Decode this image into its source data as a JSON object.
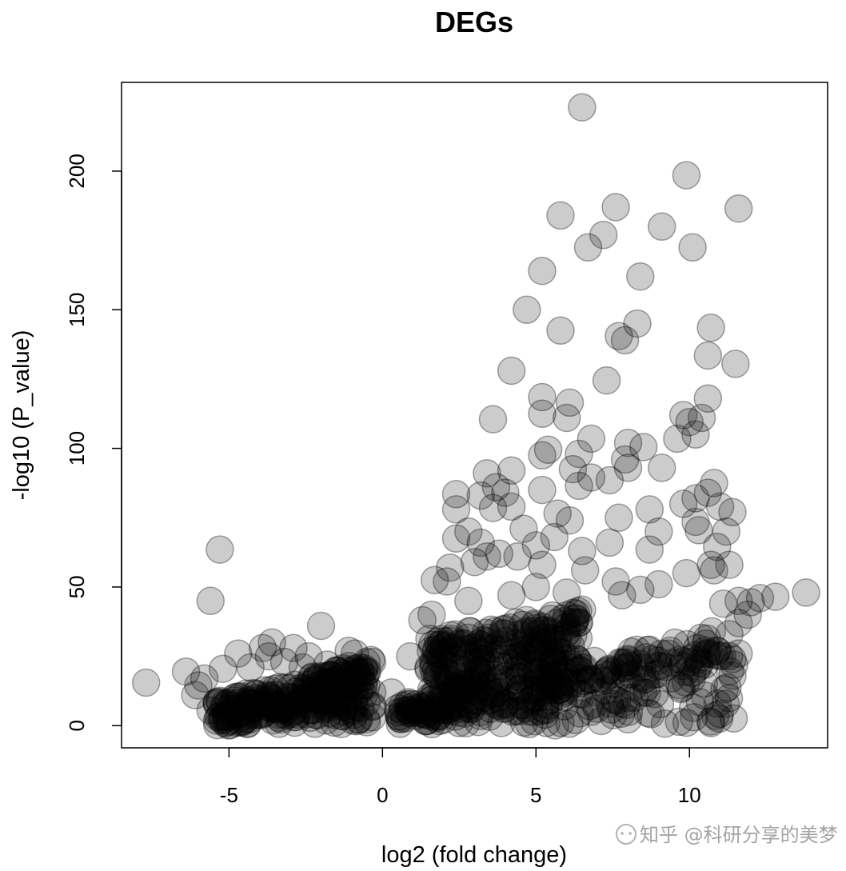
{
  "chart_data": {
    "type": "scatter",
    "title": "DEGs",
    "xlabel": "log2 (fold change)",
    "ylabel": "-log10 (P_value)",
    "xlim": [
      -8.5,
      14.5
    ],
    "ylim": [
      -8,
      232
    ],
    "xticks": [
      -5,
      0,
      5,
      10
    ],
    "yticks": [
      0,
      50,
      100,
      150,
      200
    ],
    "grid": false,
    "legend": "none",
    "point_color": "#000000",
    "point_alpha": 0.2,
    "series": [
      {
        "points": [
          [
            6.5,
            223
          ],
          [
            9.9,
            198.5
          ],
          [
            11.6,
            186.5
          ],
          [
            5.8,
            184
          ],
          [
            7.6,
            187
          ],
          [
            7.2,
            177
          ],
          [
            6.7,
            172.5
          ],
          [
            9.1,
            180
          ],
          [
            10.1,
            172.5
          ],
          [
            5.2,
            164
          ],
          [
            8.4,
            162
          ],
          [
            4.7,
            150
          ],
          [
            5.8,
            142.5
          ],
          [
            8.3,
            145
          ],
          [
            7.7,
            140.5
          ],
          [
            7.9,
            139
          ],
          [
            10.7,
            143.5
          ],
          [
            10.6,
            133.5
          ],
          [
            11.5,
            130.5
          ],
          [
            4.2,
            128
          ],
          [
            7.3,
            124.5
          ],
          [
            5.2,
            118.5
          ],
          [
            6.1,
            116.5
          ],
          [
            10.6,
            118
          ],
          [
            3.6,
            110.5
          ],
          [
            5.2,
            112.5
          ],
          [
            6.0,
            111
          ],
          [
            9.8,
            112
          ],
          [
            10.0,
            109.5
          ],
          [
            10.4,
            111
          ],
          [
            10.2,
            105
          ],
          [
            9.6,
            103.5
          ],
          [
            6.8,
            103.5
          ],
          [
            5.4,
            99.5
          ],
          [
            5.2,
            97.5
          ],
          [
            6.4,
            98
          ],
          [
            8.0,
            102
          ],
          [
            8.5,
            100.5
          ],
          [
            7.9,
            96
          ],
          [
            8.0,
            93
          ],
          [
            9.1,
            93
          ],
          [
            6.2,
            92.5
          ],
          [
            6.8,
            89.5
          ],
          [
            7.4,
            88.5
          ],
          [
            4.2,
            92
          ],
          [
            3.4,
            91
          ],
          [
            3.7,
            86
          ],
          [
            4.0,
            84
          ],
          [
            3.2,
            83
          ],
          [
            2.4,
            83.5
          ],
          [
            5.2,
            85
          ],
          [
            6.4,
            86.5
          ],
          [
            10.8,
            87.5
          ],
          [
            10.6,
            84
          ],
          [
            10.2,
            82
          ],
          [
            9.8,
            80
          ],
          [
            11.0,
            79
          ],
          [
            2.4,
            78
          ],
          [
            3.6,
            78.5
          ],
          [
            4.2,
            79
          ],
          [
            5.7,
            76.5
          ],
          [
            6.1,
            74
          ],
          [
            7.7,
            75
          ],
          [
            8.7,
            78
          ],
          [
            11.4,
            77
          ],
          [
            10.2,
            73.5
          ],
          [
            10.3,
            70.5
          ],
          [
            9.0,
            70
          ],
          [
            11.2,
            70
          ],
          [
            2.4,
            67.5
          ],
          [
            2.8,
            70
          ],
          [
            3.2,
            66
          ],
          [
            3.4,
            61
          ],
          [
            4.6,
            71
          ],
          [
            5.0,
            65
          ],
          [
            5.6,
            68
          ],
          [
            6.5,
            63
          ],
          [
            7.4,
            66
          ],
          [
            8.7,
            63.5
          ],
          [
            10.9,
            64.5
          ],
          [
            10.7,
            58
          ],
          [
            10.8,
            56
          ],
          [
            11.3,
            58
          ],
          [
            9.9,
            55
          ],
          [
            9.0,
            51
          ],
          [
            8.4,
            49
          ],
          [
            7.6,
            52
          ],
          [
            6.6,
            56
          ],
          [
            5.2,
            58
          ],
          [
            4.4,
            61
          ],
          [
            3.8,
            62
          ],
          [
            3.0,
            59
          ],
          [
            2.2,
            57
          ],
          [
            2.1,
            52
          ],
          [
            1.7,
            52.5
          ],
          [
            2.8,
            45
          ],
          [
            4.2,
            47
          ],
          [
            5.0,
            50
          ],
          [
            6.0,
            48
          ],
          [
            7.8,
            47
          ],
          [
            11.1,
            44
          ],
          [
            11.6,
            45
          ],
          [
            12.0,
            44.5
          ],
          [
            12.3,
            46
          ],
          [
            12.8,
            46.5
          ],
          [
            13.8,
            48
          ],
          [
            11.9,
            40
          ],
          [
            11.6,
            37
          ],
          [
            11.3,
            33
          ],
          [
            10.9,
            27
          ],
          [
            11.4,
            24
          ],
          [
            11.6,
            26
          ],
          [
            10.5,
            22
          ],
          [
            10.1,
            19
          ],
          [
            11.4,
            18
          ],
          [
            9.4,
            17
          ],
          [
            8.6,
            14
          ],
          [
            8.0,
            10
          ],
          [
            7.4,
            8
          ],
          [
            6.8,
            5
          ],
          [
            6.3,
            2
          ],
          [
            5.8,
            1
          ],
          [
            -5.6,
            45
          ],
          [
            -5.3,
            63.5
          ],
          [
            -7.7,
            15.5
          ],
          [
            -6.4,
            19.5
          ],
          [
            -6.0,
            14.5
          ],
          [
            -6.1,
            11
          ],
          [
            -5.8,
            17
          ],
          [
            -5.2,
            20.5
          ],
          [
            -5.3,
            9
          ],
          [
            -5.6,
            5.5
          ],
          [
            -5.3,
            3.5
          ],
          [
            -4.7,
            26
          ],
          [
            -4.3,
            21
          ],
          [
            -3.9,
            28
          ],
          [
            -3.7,
            25
          ],
          [
            -3.6,
            30
          ],
          [
            -3.2,
            23
          ],
          [
            -2.9,
            28
          ],
          [
            -2.6,
            21
          ],
          [
            -2.4,
            25
          ],
          [
            -2.0,
            36
          ],
          [
            -1.8,
            22
          ],
          [
            -1.1,
            27
          ],
          [
            -0.9,
            26
          ],
          [
            -0.6,
            20
          ],
          [
            0.3,
            12
          ],
          [
            0.9,
            25
          ],
          [
            1.3,
            38
          ],
          [
            1.6,
            40
          ]
        ]
      }
    ],
    "dense_region": {
      "description_from_plot": "overplotted band",
      "bands": [
        {
          "x_from": -5.4,
          "x_to": -0.3,
          "y_min": 0,
          "y_max_left": 9,
          "y_max_right": 24
        },
        {
          "x_from": 0.5,
          "x_to": 11.5,
          "y_min": 0,
          "y_max_left": 8,
          "y_max_right": 36
        },
        {
          "x_from": 1.5,
          "x_to": 6.5,
          "y_min": 5,
          "y_max_left": 32,
          "y_max_right": 42
        }
      ]
    }
  },
  "watermark": {
    "text": "知乎 @科研分享的美梦"
  }
}
